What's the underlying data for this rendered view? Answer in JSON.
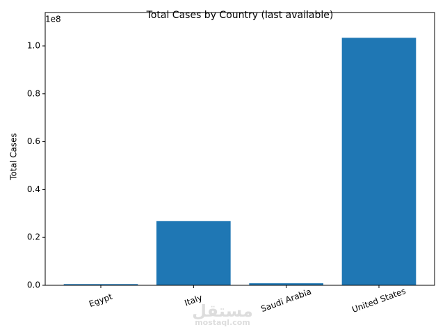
{
  "chart_data": {
    "type": "bar",
    "title": "Total Cases by Country (last available)",
    "y_label": "Total Cases",
    "y_offset_label": "1e8",
    "categories": [
      "Egypt",
      "Italy",
      "Saudi Arabia",
      "United States"
    ],
    "values": [
      500000,
      26800000,
      840000,
      103400000
    ],
    "color": "#1f77b4",
    "ylim": [
      0,
      113950000
    ],
    "yticks": [
      {
        "value": 0,
        "label": "0.0"
      },
      {
        "value": 20000000,
        "label": "0.2"
      },
      {
        "value": 40000000,
        "label": "0.4"
      },
      {
        "value": 60000000,
        "label": "0.6"
      },
      {
        "value": 80000000,
        "label": "0.8"
      },
      {
        "value": 100000000,
        "label": "1.0"
      }
    ],
    "grid": false,
    "watermark": {
      "arabic": "مستقل",
      "latin": "mostaql.com"
    }
  }
}
